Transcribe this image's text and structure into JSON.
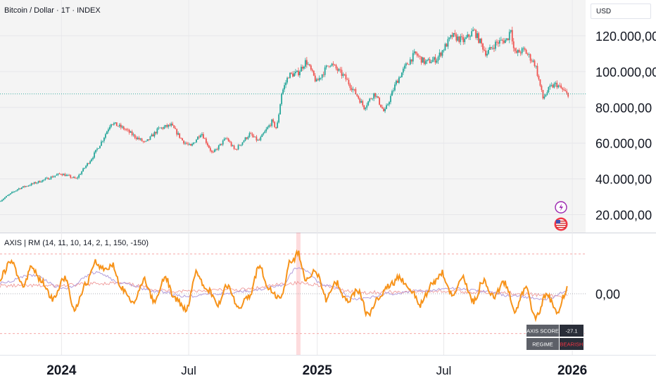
{
  "header": {
    "symbol_title": "Bitcoin / Dollar · 1T · INDEX",
    "currency": "USD"
  },
  "indicator": {
    "title": "AXIS | RM (14, 11, 10, 14, 2, 1, 150, -150)",
    "table": {
      "score_label": "AXIS SCORE",
      "score_value": "-27.1",
      "regime_label": "REGIME",
      "regime_value": "BEARISH"
    }
  },
  "colors": {
    "up": "#26a69a",
    "down": "#ef5350",
    "axis_line": "#f7931a",
    "fast_line": "#b39ddb",
    "slow_line": "#ef9a9a",
    "regime_bearish": "#f23645"
  },
  "icons": [
    "lightning-icon",
    "us-flag-icon"
  ],
  "chart_data": [
    {
      "type": "candlestick",
      "ylabel": "USD",
      "ylim": [
        10000,
        140000
      ],
      "y_ticks": [
        20000,
        40000,
        60000,
        80000,
        100000,
        120000
      ],
      "y_tick_labels": [
        "20.000,00",
        "40.000,00",
        "60.000,00",
        "80.000,00",
        "100.000,00",
        "120.000,00"
      ],
      "x_tick_labels": [
        "2024",
        "Jul",
        "2025",
        "Jul",
        "2026"
      ],
      "x_tick_dates": [
        "2024-01-01",
        "2024-07-01",
        "2025-01-01",
        "2025-07-01",
        "2026-01-01"
      ],
      "x_range": [
        "2023-10-05",
        "2026-01-20"
      ],
      "last_price": 87500,
      "grid": true,
      "series": [
        {
          "path_dates": [
            "2023-10-05",
            "2023-11-01",
            "2023-12-01",
            "2024-01-01",
            "2024-01-23",
            "2024-02-15",
            "2024-03-01",
            "2024-03-13",
            "2024-04-01",
            "2024-04-15",
            "2024-05-01",
            "2024-05-20",
            "2024-06-07",
            "2024-06-24",
            "2024-07-05",
            "2024-07-20",
            "2024-08-05",
            "2024-08-25",
            "2024-09-06",
            "2024-09-27",
            "2024-10-10",
            "2024-10-29",
            "2024-11-05",
            "2024-11-12",
            "2024-11-22",
            "2024-12-05",
            "2024-12-17",
            "2025-01-01",
            "2025-01-20",
            "2025-02-10",
            "2025-03-01",
            "2025-03-10",
            "2025-03-25",
            "2025-04-08",
            "2025-04-25",
            "2025-05-10",
            "2025-05-22",
            "2025-06-05",
            "2025-06-22",
            "2025-07-14",
            "2025-07-31",
            "2025-08-14",
            "2025-09-01",
            "2025-09-15",
            "2025-10-01",
            "2025-10-06",
            "2025-10-11",
            "2025-10-25",
            "2025-11-10",
            "2025-11-21",
            "2025-12-01",
            "2025-12-10",
            "2025-12-25"
          ],
          "path_values": [
            27500,
            34500,
            38500,
            43000,
            40000,
            52000,
            62000,
            71500,
            68000,
            64000,
            60000,
            68000,
            70000,
            61000,
            58000,
            66000,
            54000,
            63000,
            56000,
            65000,
            61000,
            72000,
            68000,
            88000,
            98000,
            99000,
            106000,
            94000,
            105000,
            97000,
            86000,
            80000,
            88000,
            77000,
            94000,
            104000,
            110000,
            105000,
            107000,
            120000,
            117000,
            123000,
            110000,
            116000,
            118000,
            124500,
            110000,
            112000,
            104000,
            85000,
            91000,
            93000,
            87500
          ]
        }
      ]
    },
    {
      "type": "line",
      "title": "AXIS | RM (14, 11, 10, 14, 2, 1, 150, -150)",
      "ylim": [
        -230,
        230
      ],
      "y_ticks": [
        0
      ],
      "y_tick_labels": [
        "0,00"
      ],
      "levels": [
        150,
        -150
      ],
      "highlight_date": "2024-12-05",
      "series": [
        {
          "role": "axis",
          "x": [
            "2023-10-05",
            "2023-10-20",
            "2023-11-06",
            "2023-11-20",
            "2023-12-05",
            "2023-12-20",
            "2024-01-05",
            "2024-01-20",
            "2024-02-05",
            "2024-02-20",
            "2024-03-01",
            "2024-03-13",
            "2024-03-28",
            "2024-04-13",
            "2024-04-28",
            "2024-05-13",
            "2024-05-28",
            "2024-06-12",
            "2024-06-27",
            "2024-07-12",
            "2024-07-27",
            "2024-08-11",
            "2024-08-26",
            "2024-09-10",
            "2024-09-25",
            "2024-10-10",
            "2024-10-25",
            "2024-11-09",
            "2024-11-24",
            "2024-12-05",
            "2024-12-15",
            "2024-12-30",
            "2025-01-14",
            "2025-01-29",
            "2025-02-13",
            "2025-02-28",
            "2025-03-15",
            "2025-03-30",
            "2025-04-14",
            "2025-04-29",
            "2025-05-14",
            "2025-05-29",
            "2025-06-13",
            "2025-06-28",
            "2025-07-13",
            "2025-07-28",
            "2025-08-12",
            "2025-08-27",
            "2025-09-11",
            "2025-09-26",
            "2025-10-11",
            "2025-10-26",
            "2025-11-10",
            "2025-11-25",
            "2025-12-10",
            "2025-12-25"
          ],
          "values": [
            60,
            120,
            30,
            100,
            40,
            -20,
            60,
            -60,
            40,
            120,
            90,
            110,
            20,
            -40,
            50,
            -30,
            60,
            -20,
            -60,
            80,
            20,
            -40,
            30,
            -50,
            -10,
            100,
            20,
            -20,
            120,
            150,
            60,
            80,
            -20,
            40,
            -30,
            10,
            -80,
            -20,
            30,
            60,
            10,
            -40,
            30,
            80,
            0,
            60,
            -30,
            50,
            -10,
            40,
            -60,
            20,
            -90,
            0,
            -70,
            20
          ]
        },
        {
          "role": "fast",
          "x": [
            "2023-10-05",
            "2023-11-20",
            "2024-01-05",
            "2024-02-20",
            "2024-03-28",
            "2024-05-13",
            "2024-06-27",
            "2024-08-11",
            "2024-09-25",
            "2024-11-09",
            "2024-12-05",
            "2025-01-14",
            "2025-02-28",
            "2025-04-14",
            "2025-05-29",
            "2025-07-13",
            "2025-08-27",
            "2025-10-11",
            "2025-11-25",
            "2025-12-25"
          ],
          "values": [
            40,
            70,
            20,
            80,
            40,
            10,
            -10,
            0,
            10,
            30,
            100,
            30,
            -20,
            0,
            10,
            20,
            10,
            -10,
            -20,
            10
          ]
        },
        {
          "role": "slow",
          "x": [
            "2023-10-05",
            "2023-12-20",
            "2024-03-13",
            "2024-06-12",
            "2024-09-10",
            "2024-12-05",
            "2025-03-15",
            "2025-06-13",
            "2025-09-11",
            "2025-12-25"
          ],
          "values": [
            30,
            30,
            40,
            10,
            15,
            40,
            5,
            10,
            5,
            -10
          ]
        }
      ]
    }
  ]
}
